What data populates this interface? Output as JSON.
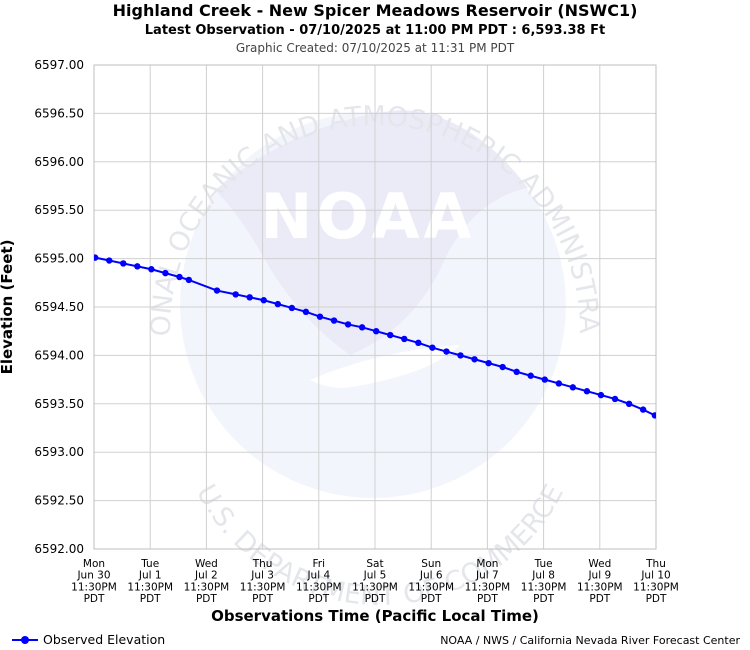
{
  "chart_data": {
    "type": "line",
    "title": "Highland Creek - New Spicer Meadows Reservoir (NSWC1)",
    "subtitle": "Latest Observation - 07/10/2025 at 11:00 PM PDT : 6,593.38 Ft",
    "created": "Graphic Created: 07/10/2025 at 11:31 PM PDT",
    "ylabel": "Elevation (Feet)",
    "xlabel": "Observations Time (Pacific Local Time)",
    "ylim": [
      6592.0,
      6597.0
    ],
    "y_ticks": [
      "6597.00",
      "6596.50",
      "6596.00",
      "6595.50",
      "6595.00",
      "6594.50",
      "6594.00",
      "6593.50",
      "6593.00",
      "6592.50",
      "6592.00"
    ],
    "x_ticks": [
      [
        "Mon",
        "Jun 30",
        "11:30PM",
        "PDT"
      ],
      [
        "Tue",
        "Jul 1",
        "11:30PM",
        "PDT"
      ],
      [
        "Wed",
        "Jul 2",
        "11:30PM",
        "PDT"
      ],
      [
        "Thu",
        "Jul 3",
        "11:30PM",
        "PDT"
      ],
      [
        "Fri",
        "Jul 4",
        "11:30PM",
        "PDT"
      ],
      [
        "Sat",
        "Jul 5",
        "11:30PM",
        "PDT"
      ],
      [
        "Sun",
        "Jul 6",
        "11:30PM",
        "PDT"
      ],
      [
        "Mon",
        "Jul 7",
        "11:30PM",
        "PDT"
      ],
      [
        "Tue",
        "Jul 8",
        "11:30PM",
        "PDT"
      ],
      [
        "Wed",
        "Jul 9",
        "11:30PM",
        "PDT"
      ],
      [
        "Thu",
        "Jul 10",
        "11:30PM",
        "PDT"
      ]
    ],
    "x_dates": [
      "2025-06-30 23:30",
      "2025-07-01 23:30",
      "2025-07-02 23:30",
      "2025-07-03 23:30",
      "2025-07-04 23:30",
      "2025-07-05 23:30",
      "2025-07-06 23:30",
      "2025-07-07 23:30",
      "2025-07-08 23:30",
      "2025-07-09 23:30",
      "2025-07-10 23:30"
    ],
    "grid": true,
    "series": [
      {
        "name": "Observed Elevation",
        "color": "#0000ff",
        "points": [
          [
            "2025-07-01 00:00",
            6595.01
          ],
          [
            "2025-07-01 06:00",
            6594.98
          ],
          [
            "2025-07-01 12:00",
            6594.95
          ],
          [
            "2025-07-01 18:00",
            6594.92
          ],
          [
            "2025-07-02 00:00",
            6594.89
          ],
          [
            "2025-07-02 06:00",
            6594.85
          ],
          [
            "2025-07-02 12:00",
            6594.81
          ],
          [
            "2025-07-02 16:00",
            6594.78
          ],
          [
            "2025-07-03 04:00",
            6594.67
          ],
          [
            "2025-07-03 12:00",
            6594.63
          ],
          [
            "2025-07-03 18:00",
            6594.6
          ],
          [
            "2025-07-04 00:00",
            6594.57
          ],
          [
            "2025-07-04 06:00",
            6594.53
          ],
          [
            "2025-07-04 12:00",
            6594.49
          ],
          [
            "2025-07-04 18:00",
            6594.45
          ],
          [
            "2025-07-05 00:00",
            6594.4
          ],
          [
            "2025-07-05 06:00",
            6594.36
          ],
          [
            "2025-07-05 12:00",
            6594.32
          ],
          [
            "2025-07-05 18:00",
            6594.29
          ],
          [
            "2025-07-06 00:00",
            6594.25
          ],
          [
            "2025-07-06 06:00",
            6594.21
          ],
          [
            "2025-07-06 12:00",
            6594.17
          ],
          [
            "2025-07-06 18:00",
            6594.13
          ],
          [
            "2025-07-07 00:00",
            6594.08
          ],
          [
            "2025-07-07 06:00",
            6594.04
          ],
          [
            "2025-07-07 12:00",
            6594.0
          ],
          [
            "2025-07-07 18:00",
            6593.96
          ],
          [
            "2025-07-08 00:00",
            6593.92
          ],
          [
            "2025-07-08 06:00",
            6593.88
          ],
          [
            "2025-07-08 12:00",
            6593.83
          ],
          [
            "2025-07-08 18:00",
            6593.79
          ],
          [
            "2025-07-09 00:00",
            6593.75
          ],
          [
            "2025-07-09 06:00",
            6593.71
          ],
          [
            "2025-07-09 12:00",
            6593.67
          ],
          [
            "2025-07-09 18:00",
            6593.63
          ],
          [
            "2025-07-10 00:00",
            6593.59
          ],
          [
            "2025-07-10 06:00",
            6593.55
          ],
          [
            "2025-07-10 12:00",
            6593.5
          ],
          [
            "2025-07-10 18:00",
            6593.44
          ],
          [
            "2025-07-10 23:00",
            6593.38
          ]
        ]
      }
    ],
    "legend_placement": "bottom-left"
  },
  "watermark": {
    "logo_text": "NOAA",
    "ring_top": "NATIONAL OCEANIC AND ATMOSPHERIC ADMINISTRATION",
    "ring_bottom": "U.S. DEPARTMENT OF COMMERCE"
  },
  "legend": {
    "label": "Observed Elevation"
  },
  "credit": "NOAA / NWS / California Nevada River Forecast Center"
}
